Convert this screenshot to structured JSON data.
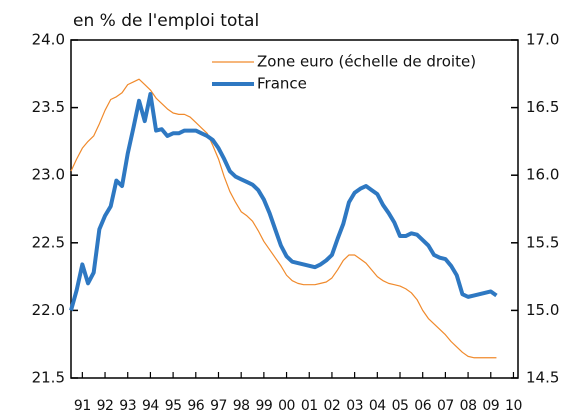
{
  "chart_data": {
    "type": "line",
    "y_label": "en % de l'emploi total",
    "x": [
      1991,
      1991.25,
      1991.5,
      1991.75,
      1992,
      1992.25,
      1992.5,
      1992.75,
      1993,
      1993.25,
      1993.5,
      1993.75,
      1994,
      1994.25,
      1994.5,
      1994.75,
      1995,
      1995.25,
      1995.5,
      1995.75,
      1996,
      1996.25,
      1996.5,
      1996.75,
      1997,
      1997.25,
      1997.5,
      1997.75,
      1998,
      1998.25,
      1998.5,
      1998.75,
      1999,
      1999.25,
      1999.5,
      1999.75,
      2000,
      2000.25,
      2000.5,
      2000.75,
      2001,
      2001.25,
      2001.5,
      2001.75,
      2002,
      2002.25,
      2002.5,
      2002.75,
      2003,
      2003.25,
      2003.5,
      2003.75,
      2004,
      2004.25,
      2004.5,
      2004.75,
      2005,
      2005.25,
      2005.5,
      2005.75,
      2006,
      2006.25,
      2006.5,
      2006.75,
      2007,
      2007.25,
      2007.5,
      2007.75,
      2008,
      2008.25,
      2008.5,
      2008.75,
      2009,
      2009.25,
      2009.5,
      2009.75
    ],
    "series": [
      {
        "name": "Zone euro (échelle de droite)",
        "color": "#f08a2c",
        "linewidth": 1.2,
        "axis": "y2",
        "values": [
          16.03,
          16.12,
          16.2,
          16.25,
          16.29,
          16.38,
          16.48,
          16.56,
          16.58,
          16.61,
          16.67,
          16.69,
          16.71,
          16.67,
          16.63,
          16.57,
          16.53,
          16.49,
          16.46,
          16.45,
          16.45,
          16.43,
          16.39,
          16.35,
          16.31,
          16.22,
          16.12,
          15.99,
          15.88,
          15.8,
          15.73,
          15.7,
          15.66,
          15.59,
          15.51,
          15.45,
          15.39,
          15.33,
          15.26,
          15.22,
          15.2,
          15.19,
          15.19,
          15.19,
          15.2,
          15.21,
          15.24,
          15.3,
          15.37,
          15.41,
          15.41,
          15.38,
          15.35,
          15.3,
          15.25,
          15.22,
          15.2,
          15.19,
          15.18,
          15.16,
          15.13,
          15.08,
          15.0,
          14.94,
          14.9,
          14.86,
          14.82,
          14.77,
          14.73,
          14.69,
          14.66,
          14.65,
          14.65,
          14.65,
          14.65,
          14.65
        ]
      },
      {
        "name": "France",
        "color": "#2e78c2",
        "linewidth": 4,
        "values": [
          22.0,
          22.15,
          22.34,
          22.2,
          22.28,
          22.6,
          22.7,
          22.77,
          22.96,
          22.92,
          23.16,
          23.35,
          23.55,
          23.4,
          23.6,
          23.33,
          23.34,
          23.29,
          23.31,
          23.31,
          23.33,
          23.33,
          23.33,
          23.31,
          23.29,
          23.26,
          23.2,
          23.12,
          23.03,
          22.99,
          22.97,
          22.95,
          22.93,
          22.89,
          22.82,
          22.72,
          22.6,
          22.48,
          22.4,
          22.36,
          22.35,
          22.34,
          22.33,
          22.32,
          22.34,
          22.37,
          22.41,
          22.53,
          22.64,
          22.8,
          22.87,
          22.9,
          22.92,
          22.89,
          22.86,
          22.78,
          22.72,
          22.65,
          22.55,
          22.55,
          22.57,
          22.56,
          22.52,
          22.48,
          22.41,
          22.39,
          22.38,
          22.33,
          22.26,
          22.12,
          22.1,
          22.11,
          22.12,
          22.13,
          22.14,
          22.11
        ]
      }
    ],
    "xlim": [
      1991,
      2010.7
    ],
    "xticks": [
      {
        "value": 1991.5,
        "label": "91"
      },
      {
        "value": 1992.5,
        "label": "92"
      },
      {
        "value": 1993.5,
        "label": "93"
      },
      {
        "value": 1994.5,
        "label": "94"
      },
      {
        "value": 1995.5,
        "label": "95"
      },
      {
        "value": 1996.5,
        "label": "96"
      },
      {
        "value": 1997.5,
        "label": "97"
      },
      {
        "value": 1998.5,
        "label": "98"
      },
      {
        "value": 1999.5,
        "label": "99"
      },
      {
        "value": 2000.5,
        "label": "00"
      },
      {
        "value": 2001.5,
        "label": "01"
      },
      {
        "value": 2002.5,
        "label": "02"
      },
      {
        "value": 2003.5,
        "label": "03"
      },
      {
        "value": 2004.5,
        "label": "04"
      },
      {
        "value": 2005.5,
        "label": "05"
      },
      {
        "value": 2006.5,
        "label": "06"
      },
      {
        "value": 2007.5,
        "label": "07"
      },
      {
        "value": 2008.5,
        "label": "08"
      },
      {
        "value": 2009.5,
        "label": "09"
      },
      {
        "value": 2010.5,
        "label": "10"
      }
    ],
    "ylim": [
      21.5,
      24.0
    ],
    "yticks": [
      {
        "value": 21.5,
        "label": "21.5"
      },
      {
        "value": 22,
        "label": "22.0"
      },
      {
        "value": 22.5,
        "label": "22.5"
      },
      {
        "value": 23,
        "label": "23.0"
      },
      {
        "value": 23.5,
        "label": "23.5"
      },
      {
        "value": 24,
        "label": "24.0"
      }
    ],
    "y2lim": [
      14.5,
      17.0
    ],
    "y2ticks": [
      {
        "value": 14.5,
        "label": "14.5"
      },
      {
        "value": 15,
        "label": "15.0"
      },
      {
        "value": 15.5,
        "label": "15.5"
      },
      {
        "value": 16,
        "label": "16.0"
      },
      {
        "value": 16.5,
        "label": "16.5"
      },
      {
        "value": 17,
        "label": "17.0"
      }
    ],
    "grid": false,
    "legend": "upper right"
  }
}
